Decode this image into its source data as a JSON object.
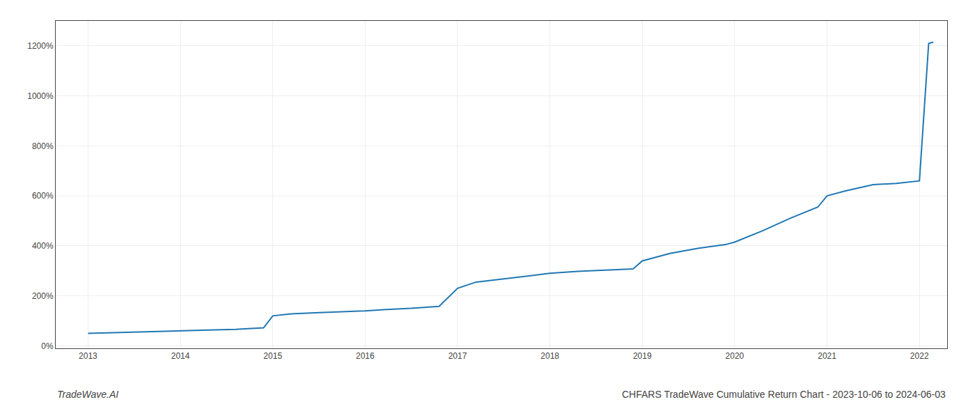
{
  "chart_data": {
    "type": "line",
    "title": "CHFARS TradeWave Cumulative Return Chart - 2023-10-06 to 2024-06-03",
    "annotations": [
      "TradeWave.AI"
    ],
    "x": [
      2013.0,
      2013.2,
      2013.5,
      2013.8,
      2014.0,
      2014.3,
      2014.6,
      2014.9,
      2015.0,
      2015.2,
      2015.5,
      2015.8,
      2016.0,
      2016.2,
      2016.5,
      2016.8,
      2017.0,
      2017.2,
      2017.5,
      2017.8,
      2018.0,
      2018.3,
      2018.6,
      2018.9,
      2019.0,
      2019.3,
      2019.6,
      2019.9,
      2020.0,
      2020.3,
      2020.6,
      2020.9,
      2021.0,
      2021.2,
      2021.5,
      2021.75,
      2022.0,
      2022.1,
      2022.15
    ],
    "values": [
      50,
      52,
      53,
      56,
      60,
      63,
      66,
      72,
      120,
      128,
      133,
      136,
      140,
      145,
      150,
      158,
      230,
      255,
      268,
      280,
      290,
      298,
      303,
      308,
      340,
      370,
      390,
      405,
      415,
      460,
      510,
      555,
      600,
      620,
      645,
      650,
      660,
      1210,
      1215
    ],
    "xlim": [
      2012.65,
      2022.3
    ],
    "ylim": [
      -10,
      1300
    ],
    "xticks": [
      2013,
      2014,
      2015,
      2016,
      2017,
      2018,
      2019,
      2020,
      2021,
      2022
    ],
    "yticks": [
      {
        "value": 0,
        "label": "0%"
      },
      {
        "value": 200,
        "label": "200%"
      },
      {
        "value": 400,
        "label": "400%"
      },
      {
        "value": 600,
        "label": "600%"
      },
      {
        "value": 800,
        "label": "800%"
      },
      {
        "value": 1000,
        "label": "1000%"
      },
      {
        "value": 1200,
        "label": "1200%"
      }
    ],
    "grid": true
  }
}
